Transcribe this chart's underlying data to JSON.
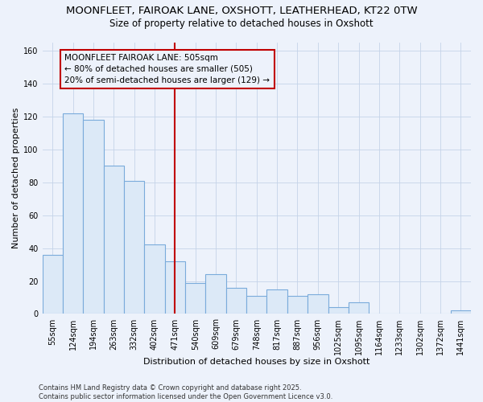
{
  "title_line1": "MOONFLEET, FAIROAK LANE, OXSHOTT, LEATHERHEAD, KT22 0TW",
  "title_line2": "Size of property relative to detached houses in Oxshott",
  "xlabel": "Distribution of detached houses by size in Oxshott",
  "ylabel": "Number of detached properties",
  "categories": [
    "55sqm",
    "124sqm",
    "194sqm",
    "263sqm",
    "332sqm",
    "402sqm",
    "471sqm",
    "540sqm",
    "609sqm",
    "679sqm",
    "748sqm",
    "817sqm",
    "887sqm",
    "956sqm",
    "1025sqm",
    "1095sqm",
    "1164sqm",
    "1233sqm",
    "1302sqm",
    "1372sqm",
    "1441sqm"
  ],
  "values": [
    36,
    122,
    118,
    90,
    81,
    42,
    32,
    19,
    24,
    16,
    11,
    15,
    11,
    12,
    4,
    7,
    0,
    0,
    0,
    0,
    2
  ],
  "bar_color": "#dce9f7",
  "bar_edge_color": "#7aabdb",
  "vline_index": 6.5,
  "vline_color": "#c00000",
  "annotation_text": "MOONFLEET FAIROAK LANE: 505sqm\n← 80% of detached houses are smaller (505)\n20% of semi-detached houses are larger (129) →",
  "annotation_box_color": "#c00000",
  "ylim": [
    0,
    165
  ],
  "yticks": [
    0,
    20,
    40,
    60,
    80,
    100,
    120,
    140,
    160
  ],
  "footnote": "Contains HM Land Registry data © Crown copyright and database right 2025.\nContains public sector information licensed under the Open Government Licence v3.0.",
  "background_color": "#edf2fb",
  "grid_color": "#c5d3e8",
  "title_fontsize": 9.5,
  "subtitle_fontsize": 8.5,
  "axis_label_fontsize": 8,
  "tick_fontsize": 7,
  "annotation_fontsize": 7.5,
  "footnote_fontsize": 6
}
